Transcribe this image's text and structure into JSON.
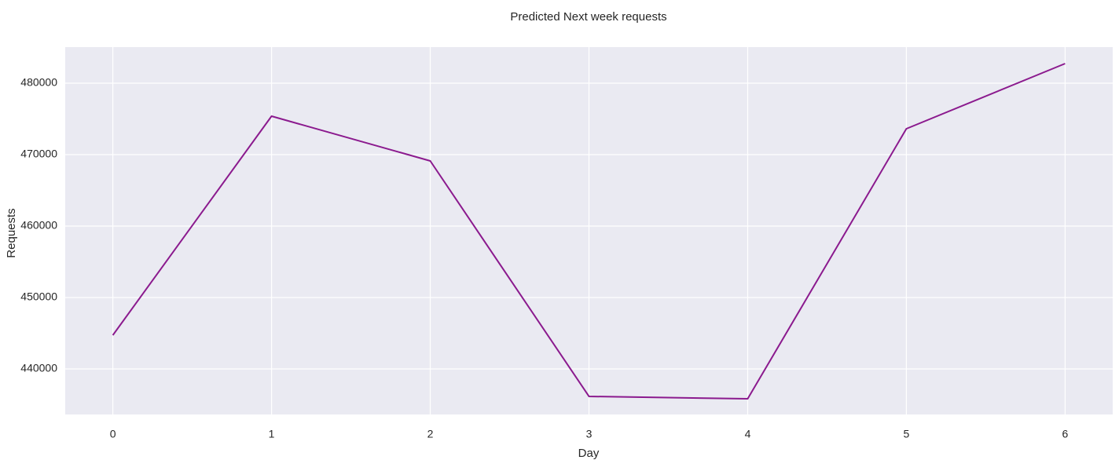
{
  "chart_data": {
    "type": "line",
    "title": "Predicted Next week requests",
    "x_label": "Day",
    "y_label": "Requests",
    "x": [
      0,
      1,
      2,
      3,
      4,
      5,
      6
    ],
    "values": [
      444725,
      475385,
      469121,
      436154,
      435824,
      473626,
      482747
    ],
    "color": "#8b1a8e",
    "xlim": [
      -0.3,
      6.3
    ],
    "xticks": [
      0,
      1,
      2,
      3,
      4,
      5,
      6
    ],
    "ylim": [
      433626,
      485055
    ],
    "yticks": [
      440000,
      450000,
      460000,
      470000,
      480000
    ],
    "grid": true
  }
}
